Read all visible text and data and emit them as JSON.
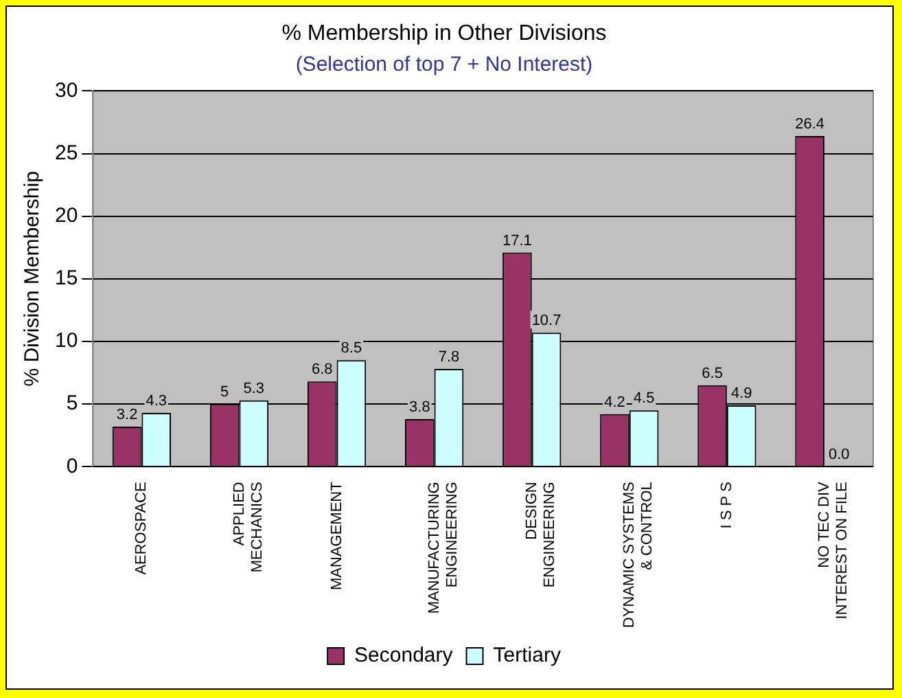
{
  "chart_data": {
    "type": "bar",
    "title": "% Membership in Other Divisions",
    "subtitle": "(Selection of top 7 + No Interest)",
    "ylabel": "% Division Membership",
    "categories": [
      "AEROSPACE",
      "APPLIED MECHANICS",
      "MANAGEMENT",
      "MANUFACTURING ENGINEERING",
      "DESIGN ENGINEERING",
      "DYNAMIC SYSTEMS & CONTROL",
      "I S P S",
      "NO TEC DIV INTEREST ON FILE"
    ],
    "series": [
      {
        "name": "Secondary",
        "color": "#993366",
        "values": [
          3.2,
          5,
          6.8,
          3.8,
          17.1,
          4.2,
          6.5,
          26.4
        ],
        "value_labels": [
          "3.2",
          "5",
          "6.8",
          "3.8",
          "17.1",
          "4.2",
          "6.5",
          "26.4"
        ]
      },
      {
        "name": "Tertiary",
        "color": "#ccffff",
        "values": [
          4.3,
          5.3,
          8.5,
          7.8,
          10.7,
          4.5,
          4.9,
          0
        ],
        "value_labels": [
          "4.3",
          "5.3",
          "8.5",
          "7.8",
          "10.7",
          "4.5",
          "4.9",
          "0.0"
        ]
      }
    ],
    "ylim": [
      0,
      30
    ],
    "yticks": [
      0,
      5,
      10,
      15,
      20,
      25,
      30
    ],
    "grid": "y",
    "legend": "bottom"
  }
}
